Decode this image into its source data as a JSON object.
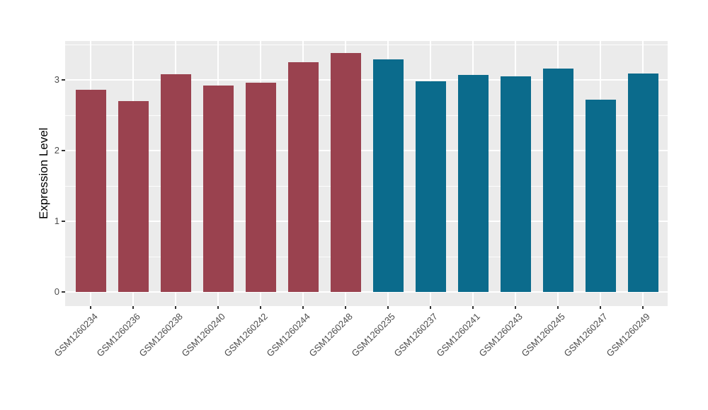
{
  "chart_data": {
    "type": "bar",
    "title": "",
    "xlabel": "",
    "ylabel": "Expression Level",
    "ylim": [
      0,
      3.5
    ],
    "yticks": [
      0,
      1,
      2,
      3
    ],
    "minor_gridlines": [
      0.5,
      1.5,
      2.5,
      3.5
    ],
    "grid": "on",
    "legend_position": "none",
    "categories": [
      "GSM1260234",
      "GSM1260236",
      "GSM1260238",
      "GSM1260240",
      "GSM1260242",
      "GSM1260244",
      "GSM1260248",
      "GSM1260235",
      "GSM1260237",
      "GSM1260241",
      "GSM1260243",
      "GSM1260245",
      "GSM1260247",
      "GSM1260249"
    ],
    "values": [
      2.86,
      2.7,
      3.08,
      2.92,
      2.96,
      3.25,
      3.38,
      3.29,
      2.98,
      3.07,
      3.05,
      3.16,
      2.72,
      3.09
    ],
    "groups": [
      "A",
      "A",
      "A",
      "A",
      "A",
      "A",
      "A",
      "B",
      "B",
      "B",
      "B",
      "B",
      "B",
      "B"
    ],
    "group_colors": {
      "A": "#9A424F",
      "B": "#0B6B8C"
    },
    "panel_bg": "#EBEBEB",
    "grid_color": "#FFFFFF",
    "tick_label_color": "#4D4D4D",
    "axis_title_color": "#000000"
  }
}
